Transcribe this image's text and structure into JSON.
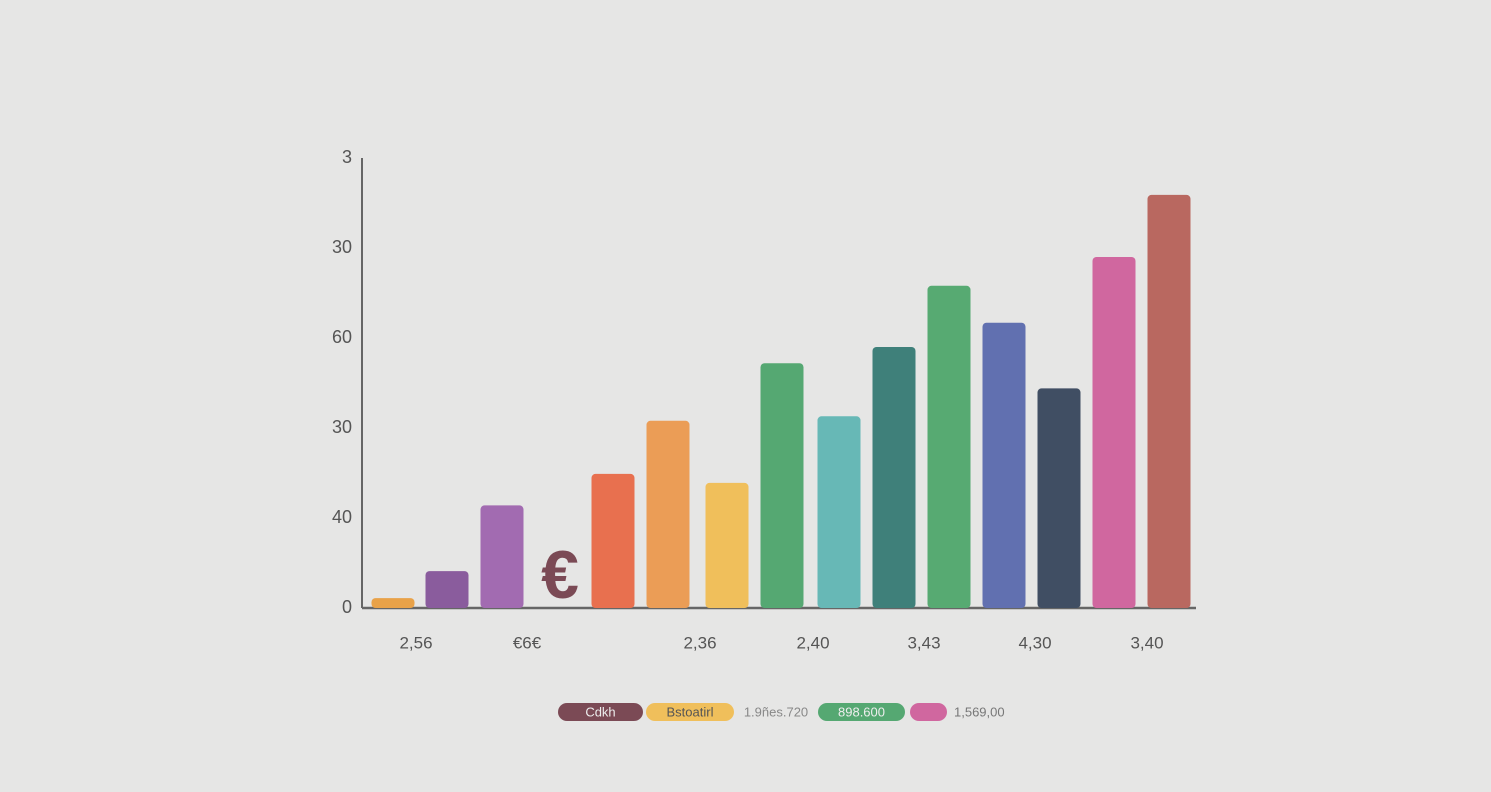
{
  "chart_data": {
    "type": "bar",
    "values": [
      0.11,
      0.41,
      1.14,
      1.49,
      2.08,
      1.39,
      2.72,
      2.13,
      2.9,
      3.58,
      3.17,
      2.44,
      3.9,
      4.59
    ],
    "colors": [
      "#e9a248",
      "#8a5c9d",
      "#a26bb1",
      "#e8704f",
      "#eb9d56",
      "#f0bf5b",
      "#55a872",
      "#67b8b6",
      "#3f807a",
      "#57aa72",
      "#6170b0",
      "#404e63",
      "#d0679f",
      "#b96860"
    ],
    "ylim": [
      0,
      5
    ],
    "yticks": [
      {
        "value": 0,
        "label": "0"
      },
      {
        "value": 1,
        "label": "40"
      },
      {
        "value": 2,
        "label": "30"
      },
      {
        "value": 3,
        "label": "60"
      },
      {
        "value": 4,
        "label": "30"
      },
      {
        "value": 5,
        "label": "3"
      }
    ],
    "x_labels": [
      "2,56",
      "€6€",
      "2,36",
      "2,40",
      "3,43",
      "4,30",
      "3,40"
    ],
    "annotation": "€",
    "legend": [
      {
        "label": "Cdkh",
        "color": "#7b4a55",
        "style": "inside"
      },
      {
        "label": "Bstoatirl",
        "color": "#f0bf5b",
        "style": "inside"
      },
      {
        "label": "1.9ñes.720",
        "color": null,
        "style": "plain"
      },
      {
        "label": "898.600",
        "color": "#55a872",
        "style": "inside"
      },
      {
        "label": "1,569,00",
        "color": "#d0679f",
        "style": "after"
      }
    ]
  }
}
